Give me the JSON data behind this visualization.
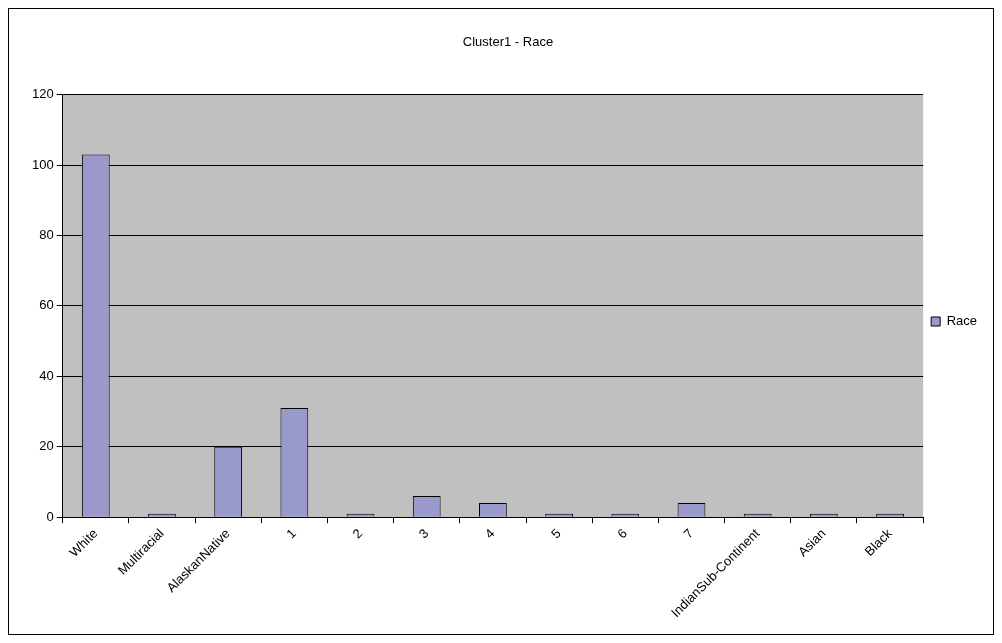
{
  "chart_data": {
    "type": "bar",
    "title": "Cluster1 - Race",
    "categories": [
      "White",
      "Multiracial",
      "AlaskanNative",
      "1",
      "2",
      "3",
      "4",
      "5",
      "6",
      "7",
      "IndianSub-Continent",
      "Asian",
      "Black"
    ],
    "series": [
      {
        "name": "Race",
        "color": "#9999cc",
        "values": [
          103,
          1,
          20,
          31,
          1,
          6,
          4,
          1,
          1,
          4,
          1,
          1,
          1
        ]
      }
    ],
    "ylim": [
      0,
      120
    ],
    "yticks": [
      0,
      20,
      40,
      60,
      80,
      100,
      120
    ],
    "grid": "y",
    "legend": "right"
  }
}
